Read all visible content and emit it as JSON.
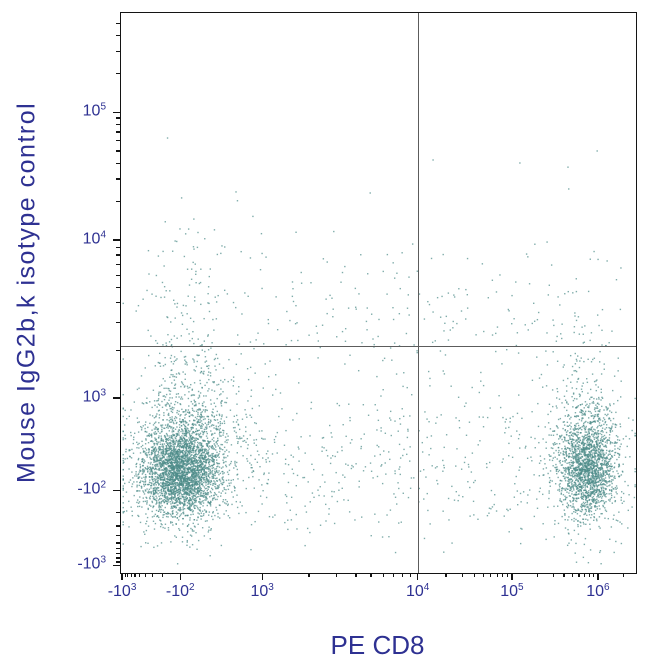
{
  "figure": {
    "type": "flow-cytometry-dot-plot",
    "background": "#ffffff",
    "border_color": "#141414",
    "tick_color": "#141414",
    "axis_label_color": "#2e3192",
    "tick_label_color": "#2e3192",
    "gate_line_color": "#5c5c5c",
    "point_color": "#4d8c89"
  },
  "chart_data": {
    "type": "scatter",
    "title": "",
    "xlabel": "PE CD8",
    "ylabel": "Mouse IgG2b,k isotype control",
    "legend": "none",
    "grid": "off",
    "x_axis": {
      "scale": "biexponential",
      "range_labels": [
        "-10³",
        "10⁶"
      ],
      "ticks": [
        {
          "base": "-10",
          "exp": "3",
          "value": -1000,
          "frac": 0.004
        },
        {
          "base": "-10",
          "exp": "2",
          "value": -100,
          "frac": 0.117
        },
        {
          "base": "10",
          "exp": "3",
          "value": 1000,
          "frac": 0.276
        },
        {
          "base": "10",
          "exp": "4",
          "value": 10000,
          "frac": 0.578
        },
        {
          "base": "10",
          "exp": "5",
          "value": 100000,
          "frac": 0.761
        },
        {
          "base": "10",
          "exp": "6",
          "value": 1000000,
          "frac": 0.928
        }
      ],
      "minor_fracs": [
        0.01,
        0.015,
        0.022,
        0.029,
        0.038,
        0.049,
        0.063,
        0.083,
        0.367,
        0.42,
        0.458,
        0.487,
        0.511,
        0.531,
        0.549,
        0.564,
        0.633,
        0.665,
        0.688,
        0.706,
        0.72,
        0.733,
        0.743,
        0.753,
        0.811,
        0.841,
        0.862,
        0.878,
        0.891,
        0.902,
        0.912,
        0.92,
        0.978
      ]
    },
    "y_axis": {
      "scale": "biexponential",
      "range_labels": [
        "-10³",
        "10⁵"
      ],
      "ticks": [
        {
          "base": "10",
          "exp": "5",
          "value": 100000,
          "frac": 0.179
        },
        {
          "base": "10",
          "exp": "4",
          "value": 10000,
          "frac": 0.407
        },
        {
          "base": "10",
          "exp": "3",
          "value": 1000,
          "frac": 0.689
        },
        {
          "base": "-10",
          "exp": "2",
          "value": -100,
          "frac": 0.854
        },
        {
          "base": "-10",
          "exp": "3",
          "value": -1000,
          "frac": 0.988
        }
      ],
      "minor_fracs": [
        0.02,
        0.042,
        0.07,
        0.11,
        0.189,
        0.201,
        0.214,
        0.23,
        0.248,
        0.27,
        0.298,
        0.338,
        0.42,
        0.434,
        0.451,
        0.47,
        0.492,
        0.519,
        0.554,
        0.604,
        0.894,
        0.918,
        0.935,
        0.948,
        0.958,
        0.967,
        0.975,
        0.982
      ]
    },
    "quadrant_gates": {
      "x_frac": 0.577,
      "y_frac_top": 0.595,
      "x_value": "1×10⁴",
      "y_value": "2×10³"
    },
    "seed": 1234,
    "total_points": 7048,
    "clusters": [
      {
        "name": "CD8-negative population core (x≈-10², y≈2.5×10²)",
        "type": "gauss",
        "fx": 0.117,
        "fy": 0.185,
        "sx": 0.037,
        "sy": 0.04,
        "count": 2900
      },
      {
        "name": "CD8-negative population halo",
        "type": "gauss",
        "fx": 0.12,
        "fy": 0.19,
        "sx": 0.072,
        "sy": 0.066,
        "count": 650
      },
      {
        "name": "CD8-positive population core (x≈8×10⁵, y≈2.5×10²)",
        "type": "gauss",
        "fx": 0.905,
        "fy": 0.19,
        "sx": 0.027,
        "sy": 0.043,
        "count": 1700
      },
      {
        "name": "CD8-positive population halo",
        "type": "gauss",
        "fx": 0.9,
        "fy": 0.195,
        "sx": 0.048,
        "sy": 0.075,
        "count": 330
      },
      {
        "name": "left vertical plume up to ~10⁴",
        "type": "plume",
        "fx": 0.128,
        "sx": 0.046,
        "fy_base": 0.255,
        "fy_scale": 0.115,
        "fy_max": 0.64,
        "count": 430
      },
      {
        "name": "right vertical plume up to ~7×10³",
        "type": "plume",
        "fx": 0.905,
        "sx": 0.03,
        "fy_base": 0.265,
        "fy_scale": 0.095,
        "fy_max": 0.58,
        "count": 150
      },
      {
        "name": "low scatter band across x",
        "type": "band",
        "fx_min": 0.03,
        "fx_max": 0.97,
        "fy": 0.19,
        "sy": 0.065,
        "count": 520
      },
      {
        "name": "mid-level bridge ≈2×10³",
        "type": "band",
        "fx_min": 0.2,
        "fx_max": 0.9,
        "fy": 0.445,
        "sy": 0.055,
        "count": 150
      },
      {
        "name": "sparse field",
        "type": "uniform",
        "fx_min": 0.03,
        "fx_max": 0.97,
        "fy_min": 0.1,
        "fy_max": 0.58,
        "count": 200
      },
      {
        "name": "high outliers up to ~3×10⁴",
        "type": "uniform",
        "fx_min": 0.08,
        "fx_max": 0.95,
        "fy_min": 0.58,
        "fy_max": 0.78,
        "count": 18
      }
    ]
  }
}
